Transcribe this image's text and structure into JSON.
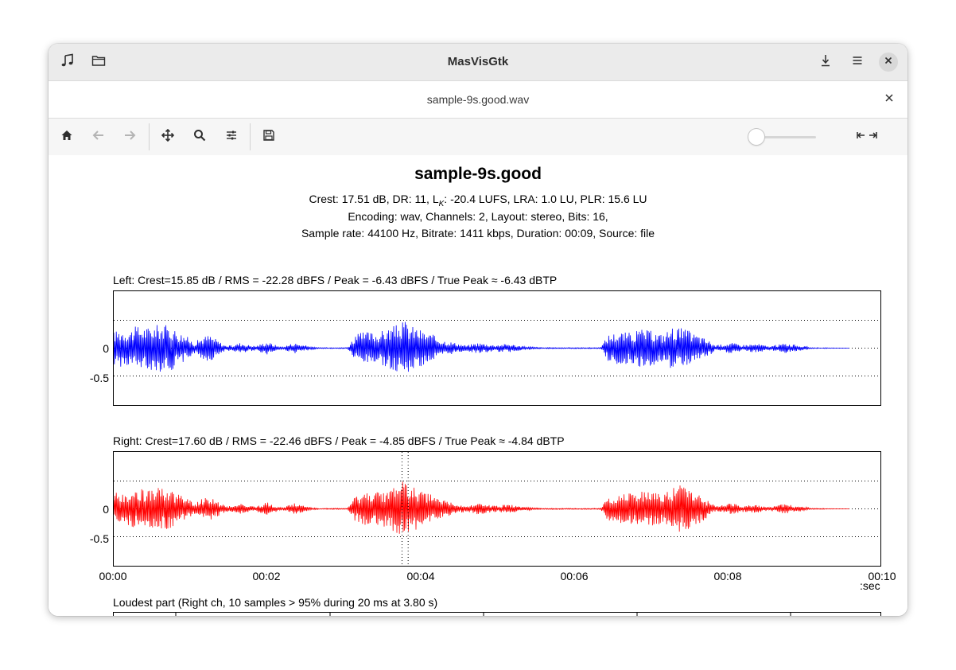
{
  "app": {
    "title": "MasVisGtk",
    "icons": {
      "music": "music-note-icon",
      "folder": "folder-icon",
      "download": "download-icon",
      "menu": "hamburger-menu-icon",
      "close": "close-icon"
    }
  },
  "tab": {
    "title": "sample-9s.good.wav"
  },
  "toolbar": {
    "buttons": [
      "home-icon",
      "back-arrow-icon",
      "forward-arrow-icon",
      "pan-move-icon",
      "zoom-icon",
      "configure-sliders-icon",
      "save-icon"
    ],
    "slider_value": 0,
    "align_icon": "align-edges-icon"
  },
  "plot": {
    "title": "sample-9s.good",
    "info_line1": "Crest: 17.51 dB,  DR: 11,  L",
    "info_line1_sub": "K",
    "info_line1_rest": ": -20.4 LUFS,  LRA: 1.0 LU,  PLR: 15.6 LU",
    "info_line2": "Encoding: wav,  Channels: 2,  Layout: stereo,  Bits: 16,",
    "info_line3": "Sample rate: 44100 Hz,  Bitrate: 1411 kbps, Duration: 00:09, Source: file",
    "colors": {
      "left": "#0000ff",
      "right": "#ff0000"
    }
  },
  "chart_data": [
    {
      "type": "line",
      "title": "Left:  Crest=15.85 dB / RMS = -22.28 dBFS / Peak = -6.43 dBFS / True Peak ≈ -6.43 dBTP",
      "yticks": [
        "0",
        "-0.5"
      ],
      "xlim": [
        0,
        10
      ],
      "ylim": [
        -1,
        1
      ],
      "grid": "dotted horizontal at 0.5, 0, -0.5",
      "envelope": [
        [
          0.0,
          0.3
        ],
        [
          0.1,
          0.35
        ],
        [
          0.2,
          0.32
        ],
        [
          0.3,
          0.4
        ],
        [
          0.45,
          0.38
        ],
        [
          0.6,
          0.44
        ],
        [
          0.75,
          0.4
        ],
        [
          0.85,
          0.3
        ],
        [
          0.95,
          0.22
        ],
        [
          1.05,
          0.1
        ],
        [
          1.15,
          0.2
        ],
        [
          1.25,
          0.25
        ],
        [
          1.35,
          0.15
        ],
        [
          1.45,
          0.05
        ],
        [
          1.55,
          0.05
        ],
        [
          1.65,
          0.1
        ],
        [
          1.75,
          0.06
        ],
        [
          1.85,
          0.04
        ],
        [
          2.0,
          0.12
        ],
        [
          2.1,
          0.06
        ],
        [
          2.2,
          0.02
        ],
        [
          2.35,
          0.1
        ],
        [
          2.5,
          0.05
        ],
        [
          2.65,
          0.01
        ],
        [
          3.05,
          0.01
        ],
        [
          3.15,
          0.25
        ],
        [
          3.3,
          0.3
        ],
        [
          3.45,
          0.28
        ],
        [
          3.55,
          0.35
        ],
        [
          3.65,
          0.4
        ],
        [
          3.75,
          0.45
        ],
        [
          3.8,
          0.5
        ],
        [
          3.85,
          0.42
        ],
        [
          3.95,
          0.38
        ],
        [
          4.05,
          0.3
        ],
        [
          4.15,
          0.25
        ],
        [
          4.3,
          0.15
        ],
        [
          4.45,
          0.1
        ],
        [
          4.6,
          0.05
        ],
        [
          4.75,
          0.1
        ],
        [
          4.95,
          0.06
        ],
        [
          5.15,
          0.08
        ],
        [
          5.35,
          0.03
        ],
        [
          5.6,
          0.01
        ],
        [
          6.35,
          0.01
        ],
        [
          6.45,
          0.25
        ],
        [
          6.6,
          0.3
        ],
        [
          6.75,
          0.28
        ],
        [
          6.9,
          0.35
        ],
        [
          7.05,
          0.3
        ],
        [
          7.15,
          0.25
        ],
        [
          7.3,
          0.4
        ],
        [
          7.45,
          0.35
        ],
        [
          7.6,
          0.25
        ],
        [
          7.75,
          0.15
        ],
        [
          7.85,
          0.05
        ],
        [
          8.05,
          0.1
        ],
        [
          8.2,
          0.06
        ],
        [
          8.4,
          0.08
        ],
        [
          8.55,
          0.03
        ],
        [
          8.75,
          0.09
        ],
        [
          8.95,
          0.05
        ],
        [
          9.1,
          0.01
        ],
        [
          9.6,
          0.0
        ]
      ]
    },
    {
      "type": "line",
      "title": "Right:  Crest=17.60 dB / RMS = -22.46 dBFS / Peak = -4.85 dBFS / True Peak ≈ -4.84 dBTP",
      "yticks": [
        "0",
        "-0.5"
      ],
      "xticks": [
        "00:00",
        "00:02",
        "00:04",
        "00:06",
        "00:08",
        "00:10"
      ],
      "xunit": ":sec",
      "xlim": [
        0,
        10
      ],
      "ylim": [
        -1,
        1
      ],
      "marker_lines": [
        3.76,
        3.84
      ],
      "grid": "dotted horizontal at 0.5, 0, -0.5",
      "envelope": [
        [
          0.0,
          0.28
        ],
        [
          0.1,
          0.32
        ],
        [
          0.2,
          0.3
        ],
        [
          0.3,
          0.35
        ],
        [
          0.45,
          0.36
        ],
        [
          0.6,
          0.38
        ],
        [
          0.75,
          0.35
        ],
        [
          0.85,
          0.28
        ],
        [
          0.95,
          0.2
        ],
        [
          1.05,
          0.1
        ],
        [
          1.15,
          0.18
        ],
        [
          1.25,
          0.22
        ],
        [
          1.35,
          0.14
        ],
        [
          1.45,
          0.06
        ],
        [
          1.55,
          0.05
        ],
        [
          1.65,
          0.1
        ],
        [
          1.75,
          0.07
        ],
        [
          1.85,
          0.04
        ],
        [
          2.0,
          0.12
        ],
        [
          2.1,
          0.06
        ],
        [
          2.2,
          0.02
        ],
        [
          2.35,
          0.1
        ],
        [
          2.5,
          0.05
        ],
        [
          2.65,
          0.01
        ],
        [
          3.05,
          0.01
        ],
        [
          3.15,
          0.22
        ],
        [
          3.3,
          0.3
        ],
        [
          3.45,
          0.32
        ],
        [
          3.55,
          0.34
        ],
        [
          3.65,
          0.4
        ],
        [
          3.75,
          0.5
        ],
        [
          3.8,
          0.58
        ],
        [
          3.85,
          0.45
        ],
        [
          3.95,
          0.38
        ],
        [
          4.05,
          0.3
        ],
        [
          4.15,
          0.26
        ],
        [
          4.3,
          0.16
        ],
        [
          4.45,
          0.1
        ],
        [
          4.6,
          0.05
        ],
        [
          4.75,
          0.1
        ],
        [
          4.95,
          0.06
        ],
        [
          5.15,
          0.08
        ],
        [
          5.35,
          0.03
        ],
        [
          5.6,
          0.01
        ],
        [
          6.35,
          0.01
        ],
        [
          6.45,
          0.22
        ],
        [
          6.6,
          0.28
        ],
        [
          6.75,
          0.3
        ],
        [
          6.9,
          0.33
        ],
        [
          7.05,
          0.3
        ],
        [
          7.15,
          0.28
        ],
        [
          7.3,
          0.38
        ],
        [
          7.45,
          0.45
        ],
        [
          7.6,
          0.3
        ],
        [
          7.75,
          0.15
        ],
        [
          7.85,
          0.05
        ],
        [
          8.05,
          0.1
        ],
        [
          8.2,
          0.06
        ],
        [
          8.4,
          0.08
        ],
        [
          8.55,
          0.03
        ],
        [
          8.75,
          0.09
        ],
        [
          8.95,
          0.05
        ],
        [
          9.1,
          0.01
        ],
        [
          9.6,
          0.0
        ]
      ]
    },
    {
      "type": "line",
      "title": "Loudest part (Right ch, 10 samples > 95% during 20 ms at 3.80 s)"
    }
  ]
}
